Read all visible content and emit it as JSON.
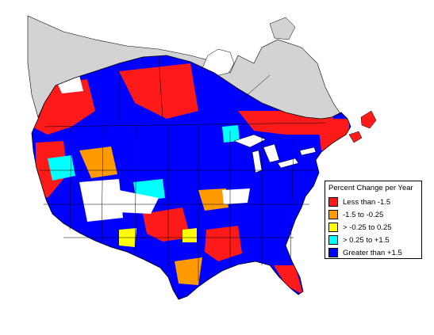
{
  "colors": {
    "background": "#ffffff",
    "canada_north": "#d3d3d3",
    "unclassified": "#ffffff",
    "boundary": "#000000"
  },
  "legend": {
    "title": "Percent Change per Year",
    "items": [
      {
        "label": "Less than -1.5",
        "color": "#ff1a1a"
      },
      {
        "label": "-1.5 to -0.25",
        "color": "#ff9a00"
      },
      {
        "label": "> -0.25 to 0.25",
        "color": "#ffff00"
      },
      {
        "label": "> 0.25 to +1.5",
        "color": "#00ffff"
      },
      {
        "label": "Greater than +1.5",
        "color": "#0000ff"
      }
    ]
  }
}
